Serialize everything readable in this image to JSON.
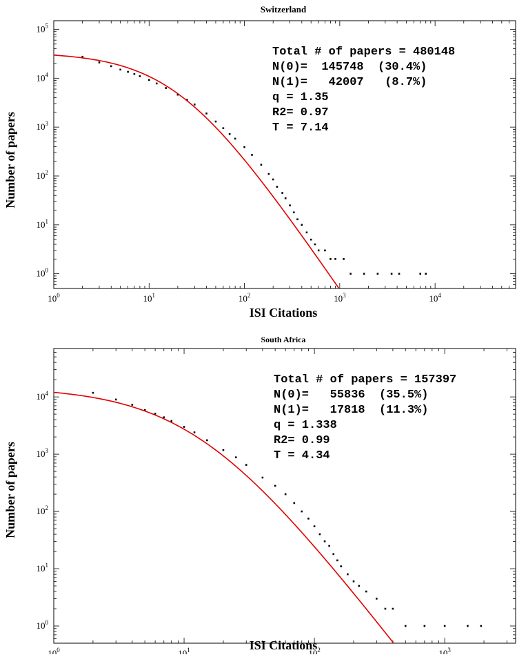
{
  "chart_data": [
    {
      "type": "scatter",
      "title": "Switzerland",
      "xlabel": "ISI Citations",
      "ylabel": "Number of papers",
      "xscale": "log",
      "yscale": "log",
      "xlim": [
        1,
        70000
      ],
      "ylim": [
        0.5,
        150000
      ],
      "xticks": [
        {
          "base": "10",
          "exp": "0"
        },
        {
          "base": "10",
          "exp": "1"
        },
        {
          "base": "10",
          "exp": "2"
        },
        {
          "base": "10",
          "exp": "3"
        },
        {
          "base": "10",
          "exp": "4"
        }
      ],
      "yticks": [
        {
          "base": "10",
          "exp": "0"
        },
        {
          "base": "10",
          "exp": "1"
        },
        {
          "base": "10",
          "exp": "2"
        },
        {
          "base": "10",
          "exp": "3"
        },
        {
          "base": "10",
          "exp": "4"
        },
        {
          "base": "10",
          "exp": "5"
        }
      ],
      "stats": [
        "Total # of papers = 480148",
        "N(0)=  145748  (30.4%)",
        "N(1)=   42007   (8.7%)",
        "q = 1.35",
        "R2= 0.97",
        "T = 7.14"
      ],
      "fit": {
        "q": 1.35,
        "T": 7.14,
        "N0": 34000,
        "color": "#e00000"
      },
      "series": [
        {
          "color": "#000000",
          "points": [
            [
              2,
              27500
            ],
            [
              3,
              21000
            ],
            [
              4,
              17600
            ],
            [
              5,
              15000
            ],
            [
              6,
              13500
            ],
            [
              7,
              12200
            ],
            [
              8,
              11000
            ],
            [
              10,
              9200
            ],
            [
              12,
              7800
            ],
            [
              15,
              6300
            ],
            [
              20,
              4600
            ],
            [
              25,
              3600
            ],
            [
              30,
              2900
            ],
            [
              40,
              1900
            ],
            [
              50,
              1300
            ],
            [
              60,
              950
            ],
            [
              70,
              720
            ],
            [
              80,
              580
            ],
            [
              100,
              390
            ],
            [
              120,
              270
            ],
            [
              150,
              170
            ],
            [
              180,
              110
            ],
            [
              200,
              85
            ],
            [
              220,
              60
            ],
            [
              250,
              45
            ],
            [
              270,
              35
            ],
            [
              300,
              25
            ],
            [
              330,
              18
            ],
            [
              360,
              13
            ],
            [
              400,
              10
            ],
            [
              450,
              7
            ],
            [
              500,
              5
            ],
            [
              550,
              4
            ],
            [
              600,
              3
            ],
            [
              700,
              3
            ],
            [
              800,
              2
            ],
            [
              900,
              2
            ],
            [
              1100,
              2
            ],
            [
              1300,
              1
            ],
            [
              1800,
              1
            ],
            [
              2500,
              1
            ],
            [
              3500,
              1
            ],
            [
              4200,
              1
            ],
            [
              7000,
              1
            ],
            [
              8000,
              1
            ]
          ]
        }
      ]
    },
    {
      "type": "scatter",
      "title": "South Africa",
      "xlabel": "ISI Citations",
      "ylabel": "Number of papers",
      "xscale": "log",
      "yscale": "log",
      "xlim": [
        1,
        3500
      ],
      "ylim": [
        0.5,
        70000
      ],
      "xticks": [
        {
          "base": "10",
          "exp": "0"
        },
        {
          "base": "10",
          "exp": "1"
        },
        {
          "base": "10",
          "exp": "2"
        },
        {
          "base": "10",
          "exp": "3"
        }
      ],
      "yticks": [
        {
          "base": "10",
          "exp": "0"
        },
        {
          "base": "10",
          "exp": "1"
        },
        {
          "base": "10",
          "exp": "2"
        },
        {
          "base": "10",
          "exp": "3"
        },
        {
          "base": "10",
          "exp": "4"
        }
      ],
      "stats": [
        "Total # of papers = 157397",
        "N(0)=   55836  (35.5%)",
        "N(1)=   17818  (11.3%)",
        "q = 1.338",
        "R2= 0.99",
        "T = 4.34"
      ],
      "fit": {
        "q": 1.338,
        "T": 4.34,
        "N0": 15000,
        "color": "#e00000"
      },
      "series": [
        {
          "color": "#000000",
          "points": [
            [
              2,
              11800
            ],
            [
              3,
              9000
            ],
            [
              4,
              7300
            ],
            [
              5,
              5900
            ],
            [
              6,
              5100
            ],
            [
              7,
              4400
            ],
            [
              8,
              3800
            ],
            [
              10,
              3000
            ],
            [
              12,
              2400
            ],
            [
              15,
              1750
            ],
            [
              20,
              1180
            ],
            [
              25,
              880
            ],
            [
              30,
              650
            ],
            [
              40,
              390
            ],
            [
              50,
              280
            ],
            [
              60,
              200
            ],
            [
              70,
              140
            ],
            [
              80,
              100
            ],
            [
              90,
              75
            ],
            [
              100,
              55
            ],
            [
              110,
              40
            ],
            [
              120,
              30
            ],
            [
              130,
              25
            ],
            [
              140,
              18
            ],
            [
              150,
              14
            ],
            [
              160,
              11
            ],
            [
              180,
              8
            ],
            [
              200,
              6
            ],
            [
              220,
              5
            ],
            [
              250,
              4
            ],
            [
              300,
              3
            ],
            [
              350,
              2
            ],
            [
              400,
              2
            ],
            [
              500,
              1
            ],
            [
              700,
              1
            ],
            [
              1000,
              1
            ],
            [
              1500,
              1
            ],
            [
              1900,
              1
            ]
          ]
        }
      ]
    }
  ]
}
